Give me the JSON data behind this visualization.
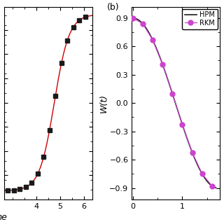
{
  "panel_b": {
    "label": "(b)",
    "hpm_color": "#1a1a1a",
    "rkm_color": "#cc44cc",
    "marker": "o",
    "marker_color": "#cc44cc",
    "ylim": [
      -1.02,
      1.02
    ],
    "xlim": [
      -0.02,
      1.75
    ],
    "yticks": [
      -0.9,
      -0.6,
      -0.3,
      0.0,
      0.3,
      0.6,
      0.9
    ],
    "xticks": [
      0,
      1
    ],
    "ylabel": "W(t)",
    "legend_hpm": "HPM",
    "legend_rkm": "RKM"
  },
  "panel_a": {
    "xlim": [
      2.65,
      6.35
    ],
    "xticks": [
      4,
      5,
      6
    ],
    "xlabel": "me",
    "hpm_color": "#cc0000",
    "rkm_color": "#1a1a1a",
    "marker": "s",
    "marker_color": "#1a1a1a",
    "marker_size": 4
  }
}
